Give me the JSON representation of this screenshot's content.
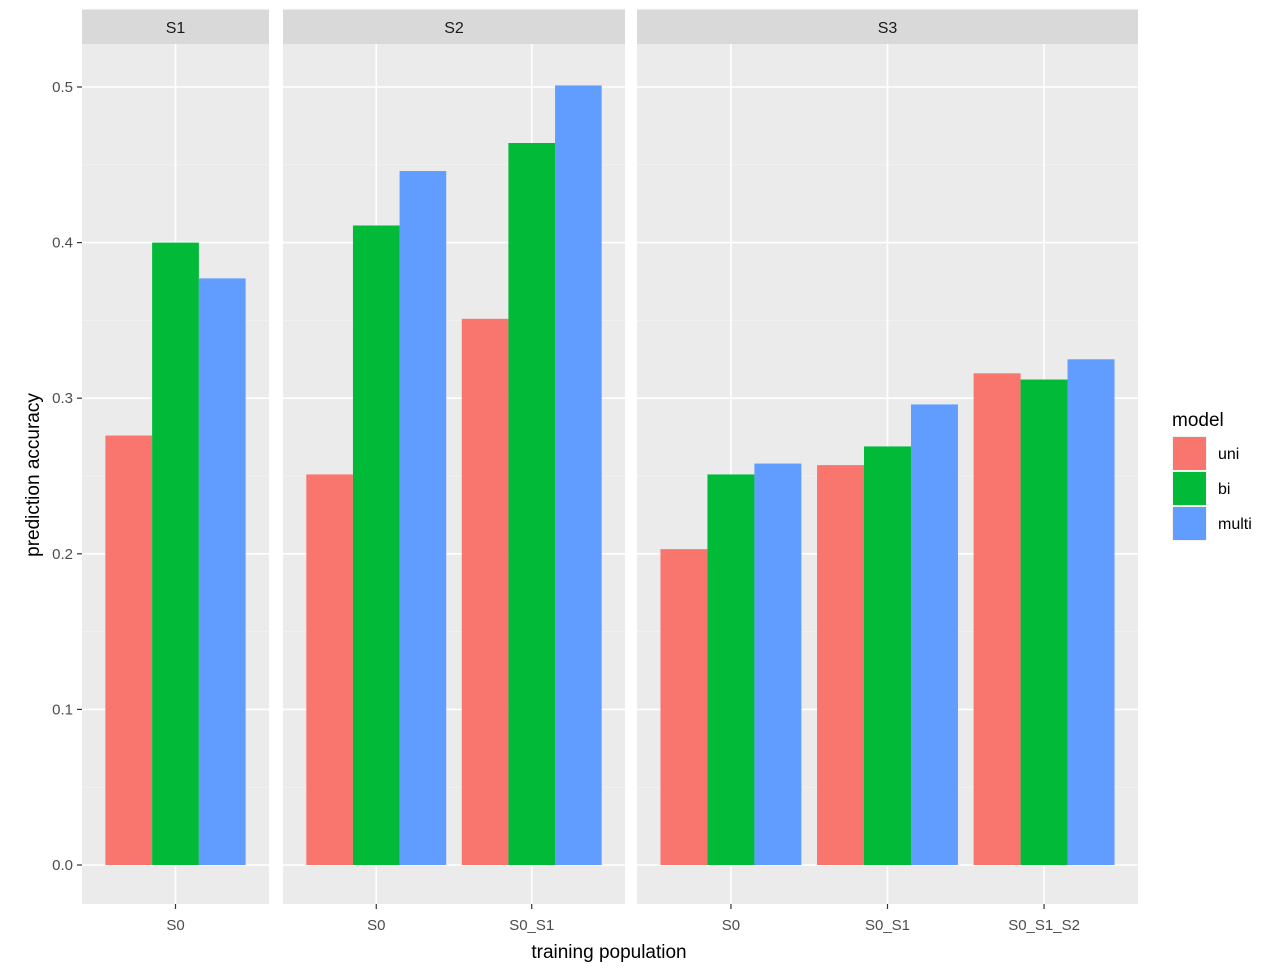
{
  "chart_data": {
    "type": "bar",
    "xlabel": "training population",
    "ylabel": "prediction accuracy",
    "ylim": [
      -0.025,
      0.53
    ],
    "yticks": [
      0.0,
      0.1,
      0.2,
      0.3,
      0.4,
      0.5
    ],
    "ytick_labels": [
      "0.0",
      "0.1",
      "0.2",
      "0.3",
      "0.4",
      "0.5"
    ],
    "grid": true,
    "legend": {
      "title": "model",
      "placement": "right",
      "entries": [
        {
          "label": "uni",
          "color": "#F8766D"
        },
        {
          "label": "bi",
          "color": "#00BA38"
        },
        {
          "label": "multi",
          "color": "#619CFF"
        }
      ]
    },
    "series_colors": [
      "#F8766D",
      "#00BA38",
      "#619CFF"
    ],
    "panels": [
      {
        "strip": "S1",
        "categories": [
          "S0"
        ],
        "series": [
          {
            "name": "uni",
            "values": [
              0.276
            ]
          },
          {
            "name": "bi",
            "values": [
              0.4
            ]
          },
          {
            "name": "multi",
            "values": [
              0.377
            ]
          }
        ]
      },
      {
        "strip": "S2",
        "categories": [
          "S0",
          "S0_S1"
        ],
        "series": [
          {
            "name": "uni",
            "values": [
              0.251,
              0.351
            ]
          },
          {
            "name": "bi",
            "values": [
              0.411,
              0.464
            ]
          },
          {
            "name": "multi",
            "values": [
              0.446,
              0.501
            ]
          }
        ]
      },
      {
        "strip": "S3",
        "categories": [
          "S0",
          "S0_S1",
          "S0_S1_S2"
        ],
        "series": [
          {
            "name": "uni",
            "values": [
              0.203,
              0.257,
              0.316
            ]
          },
          {
            "name": "bi",
            "values": [
              0.251,
              0.269,
              0.312
            ]
          },
          {
            "name": "multi",
            "values": [
              0.258,
              0.296,
              0.325
            ]
          }
        ]
      }
    ]
  }
}
